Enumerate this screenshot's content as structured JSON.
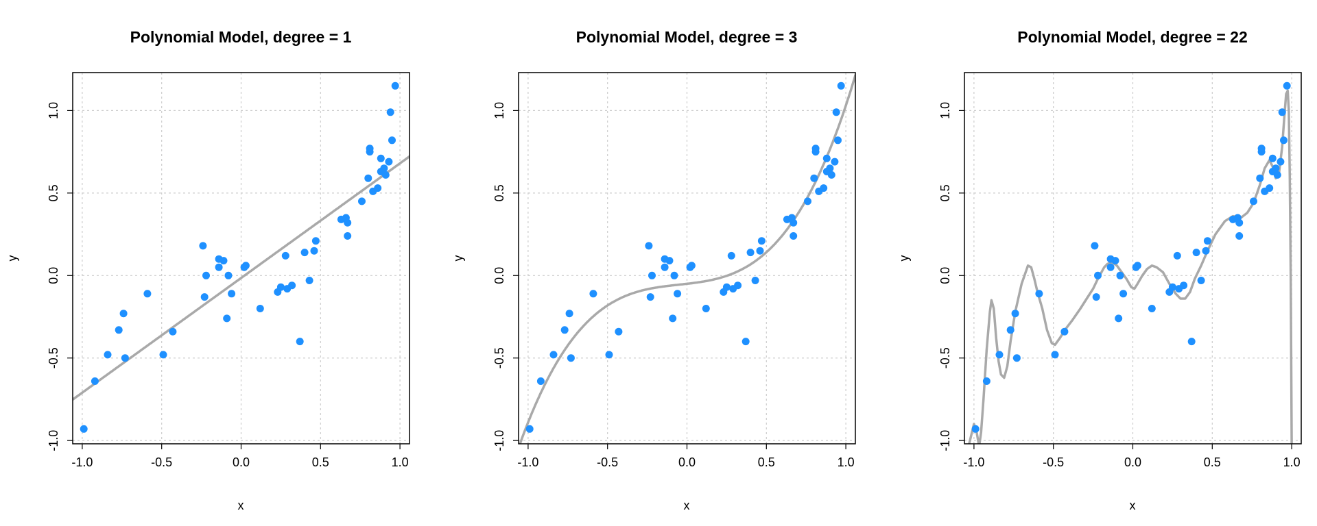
{
  "colors": {
    "points": "#1E90FF",
    "fit": "#A9A9A9",
    "grid": "#CCCCCC"
  },
  "chart_data": [
    {
      "type": "scatter",
      "title": "Polynomial Model, degree = 1",
      "degree": 1,
      "xlabel": "x",
      "ylabel": "y",
      "xlim": [
        -1.06,
        1.06
      ],
      "ylim": [
        -1.02,
        1.23
      ],
      "x_ticks": [
        "-1.0",
        "-0.5",
        "0.0",
        "0.5",
        "1.0"
      ],
      "y_ticks": [
        "-1.0",
        "-0.5",
        "0.0",
        "0.5",
        "1.0"
      ],
      "grid": true,
      "fit_line": {
        "coefficients": [
          -0.015,
          0.695
        ]
      }
    },
    {
      "type": "scatter",
      "title": "Polynomial Model, degree = 3",
      "degree": 3,
      "xlabel": "x",
      "ylabel": "y",
      "xlim": [
        -1.06,
        1.06
      ],
      "ylim": [
        -1.02,
        1.23
      ],
      "x_ticks": [
        "-1.0",
        "-0.5",
        "0.0",
        "0.5",
        "1.0"
      ],
      "y_ticks": [
        "-1.0",
        "-0.5",
        "0.0",
        "0.5",
        "1.0"
      ],
      "grid": true,
      "fit_line": {
        "coefficients": [
          -0.05,
          0.11,
          0.12,
          0.85
        ]
      }
    },
    {
      "type": "scatter",
      "title": "Polynomial Model, degree = 22",
      "degree": 22,
      "xlabel": "x",
      "ylabel": "y",
      "xlim": [
        -1.06,
        1.06
      ],
      "ylim": [
        -1.02,
        1.23
      ],
      "x_ticks": [
        "-1.0",
        "-0.5",
        "0.0",
        "0.5",
        "1.0"
      ],
      "y_ticks": [
        "-1.0",
        "-0.5",
        "0.0",
        "0.5",
        "1.0"
      ],
      "grid": true,
      "fit_line": {
        "curve": [
          [
            -1.03,
            -1.02
          ],
          [
            -1.0,
            -0.9
          ],
          [
            -0.985,
            -0.94
          ],
          [
            -0.97,
            -1.02
          ],
          [
            -0.965,
            -1.02
          ],
          [
            -0.955,
            -0.95
          ],
          [
            -0.94,
            -0.75
          ],
          [
            -0.92,
            -0.45
          ],
          [
            -0.9,
            -0.22
          ],
          [
            -0.89,
            -0.15
          ],
          [
            -0.875,
            -0.2
          ],
          [
            -0.86,
            -0.38
          ],
          [
            -0.845,
            -0.52
          ],
          [
            -0.83,
            -0.6
          ],
          [
            -0.81,
            -0.62
          ],
          [
            -0.79,
            -0.55
          ],
          [
            -0.77,
            -0.4
          ],
          [
            -0.74,
            -0.22
          ],
          [
            -0.7,
            -0.05
          ],
          [
            -0.66,
            0.06
          ],
          [
            -0.64,
            0.05
          ],
          [
            -0.62,
            -0.02
          ],
          [
            -0.6,
            -0.1
          ],
          [
            -0.57,
            -0.2
          ],
          [
            -0.54,
            -0.33
          ],
          [
            -0.51,
            -0.41
          ],
          [
            -0.49,
            -0.42
          ],
          [
            -0.46,
            -0.38
          ],
          [
            -0.42,
            -0.32
          ],
          [
            -0.38,
            -0.27
          ],
          [
            -0.33,
            -0.2
          ],
          [
            -0.29,
            -0.14
          ],
          [
            -0.25,
            -0.08
          ],
          [
            -0.22,
            -0.02
          ],
          [
            -0.18,
            0.05
          ],
          [
            -0.16,
            0.07
          ],
          [
            -0.13,
            0.08
          ],
          [
            -0.1,
            0.06
          ],
          [
            -0.07,
            0.02
          ],
          [
            -0.04,
            -0.02
          ],
          [
            -0.01,
            -0.07
          ],
          [
            0.01,
            -0.08
          ],
          [
            0.03,
            -0.05
          ],
          [
            0.06,
            0.0
          ],
          [
            0.09,
            0.04
          ],
          [
            0.12,
            0.06
          ],
          [
            0.15,
            0.05
          ],
          [
            0.19,
            0.02
          ],
          [
            0.23,
            -0.05
          ],
          [
            0.27,
            -0.11
          ],
          [
            0.3,
            -0.14
          ],
          [
            0.33,
            -0.14
          ],
          [
            0.36,
            -0.1
          ],
          [
            0.39,
            -0.02
          ],
          [
            0.43,
            0.06
          ],
          [
            0.47,
            0.15
          ],
          [
            0.52,
            0.25
          ],
          [
            0.58,
            0.33
          ],
          [
            0.63,
            0.36
          ],
          [
            0.68,
            0.35
          ],
          [
            0.72,
            0.38
          ],
          [
            0.76,
            0.44
          ],
          [
            0.8,
            0.55
          ],
          [
            0.83,
            0.65
          ],
          [
            0.86,
            0.7
          ],
          [
            0.88,
            0.66
          ],
          [
            0.9,
            0.59
          ],
          [
            0.92,
            0.62
          ],
          [
            0.94,
            0.78
          ],
          [
            0.955,
            0.98
          ],
          [
            0.965,
            1.1
          ],
          [
            0.975,
            1.12
          ],
          [
            0.982,
            1.0
          ],
          [
            0.988,
            0.6
          ],
          [
            0.994,
            0.0
          ],
          [
            1.0,
            -1.02
          ]
        ]
      }
    }
  ],
  "points": [
    [
      -0.99,
      -0.93
    ],
    [
      -0.92,
      -0.64
    ],
    [
      -0.84,
      -0.48
    ],
    [
      -0.77,
      -0.33
    ],
    [
      -0.74,
      -0.23
    ],
    [
      -0.73,
      -0.5
    ],
    [
      -0.59,
      -0.11
    ],
    [
      -0.49,
      -0.48
    ],
    [
      -0.43,
      -0.34
    ],
    [
      -0.24,
      0.18
    ],
    [
      -0.23,
      -0.13
    ],
    [
      -0.22,
      0.0
    ],
    [
      -0.14,
      0.05
    ],
    [
      -0.14,
      0.1
    ],
    [
      -0.11,
      0.09
    ],
    [
      -0.09,
      -0.26
    ],
    [
      -0.08,
      0.0
    ],
    [
      -0.06,
      -0.11
    ],
    [
      0.02,
      0.05
    ],
    [
      0.03,
      0.06
    ],
    [
      0.12,
      -0.2
    ],
    [
      0.23,
      -0.1
    ],
    [
      0.25,
      -0.07
    ],
    [
      0.28,
      0.12
    ],
    [
      0.29,
      -0.08
    ],
    [
      0.32,
      -0.06
    ],
    [
      0.37,
      -0.4
    ],
    [
      0.4,
      0.14
    ],
    [
      0.43,
      -0.03
    ],
    [
      0.46,
      0.15
    ],
    [
      0.47,
      0.21
    ],
    [
      0.63,
      0.34
    ],
    [
      0.66,
      0.35
    ],
    [
      0.67,
      0.24
    ],
    [
      0.67,
      0.32
    ],
    [
      0.76,
      0.45
    ],
    [
      0.8,
      0.59
    ],
    [
      0.81,
      0.75
    ],
    [
      0.81,
      0.77
    ],
    [
      0.83,
      0.51
    ],
    [
      0.86,
      0.53
    ],
    [
      0.88,
      0.71
    ],
    [
      0.88,
      0.63
    ],
    [
      0.9,
      0.65
    ],
    [
      0.91,
      0.61
    ],
    [
      0.93,
      0.69
    ],
    [
      0.94,
      0.99
    ],
    [
      0.95,
      0.82
    ],
    [
      0.97,
      1.15
    ]
  ]
}
